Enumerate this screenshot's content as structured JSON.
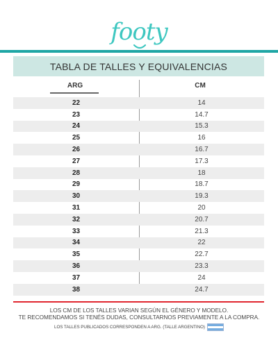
{
  "brand": {
    "logo_text": "footy",
    "accent": "#3ec7c0",
    "bar": "#1fa6a5"
  },
  "title": "TABLA DE TALLES Y EQUIVALENCIAS",
  "columns": {
    "arg": "ARG",
    "cm": "CM"
  },
  "rows": [
    {
      "arg": "22",
      "cm": "14"
    },
    {
      "arg": "23",
      "cm": "14.7"
    },
    {
      "arg": "24",
      "cm": "15.3"
    },
    {
      "arg": "25",
      "cm": "16"
    },
    {
      "arg": "26",
      "cm": "16.7"
    },
    {
      "arg": "27",
      "cm": "17.3"
    },
    {
      "arg": "28",
      "cm": "18"
    },
    {
      "arg": "29",
      "cm": "18.7"
    },
    {
      "arg": "30",
      "cm": "19.3"
    },
    {
      "arg": "31",
      "cm": "20"
    },
    {
      "arg": "32",
      "cm": "20.7"
    },
    {
      "arg": "33",
      "cm": "21.3"
    },
    {
      "arg": "34",
      "cm": "22"
    },
    {
      "arg": "35",
      "cm": "22.7"
    },
    {
      "arg": "36",
      "cm": "23.3"
    },
    {
      "arg": "37",
      "cm": "24"
    },
    {
      "arg": "38",
      "cm": "24.7"
    }
  ],
  "notes": {
    "line1": "LOS CM DE LOS TALLES VARIAN SEGÚN EL GÉNERO Y MODELO.",
    "line2": "TE RECOMENDAMOS SI TENÉS DUDAS, CONSULTARNOS PREVIAMENTE A LA COMPRA.",
    "line3": "LOS TALLES PUBLICADOS CORRESPONDEN A ARG. (TALLE ARGENTINO)"
  },
  "footer_accent": "#e0252e"
}
